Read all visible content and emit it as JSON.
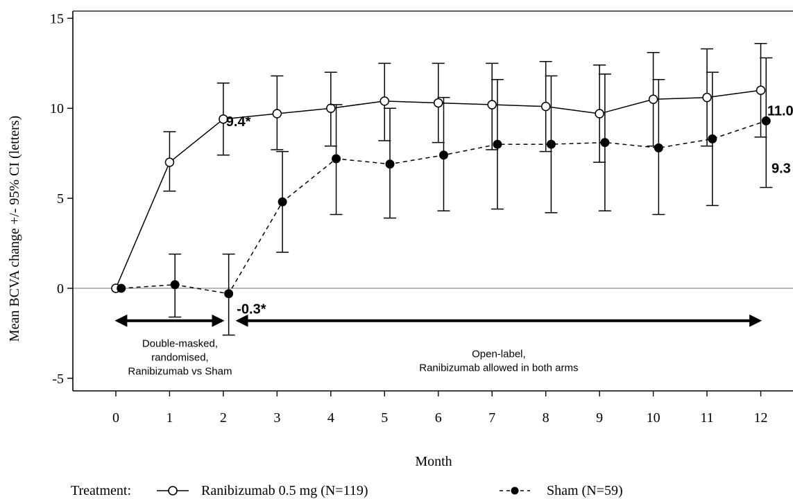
{
  "chart_data": {
    "type": "line",
    "xlabel": "Month",
    "ylabel": "Mean BCVA change +/- 95% CI  (letters)",
    "xlim": [
      -0.8,
      12.6
    ],
    "ylim": [
      -5.7,
      15.4
    ],
    "x_ticks": [
      0,
      1,
      2,
      3,
      4,
      5,
      6,
      7,
      8,
      9,
      10,
      11,
      12
    ],
    "y_ticks": [
      -5,
      0,
      5,
      10,
      15
    ],
    "reference_line_y": 0,
    "series": [
      {
        "name": "Ranibizumab 0.5 mg (N=119)",
        "line_style": "solid",
        "marker": "open-circle",
        "color": "#000000",
        "x_offset": 0,
        "x": [
          0,
          1,
          2,
          3,
          4,
          5,
          6,
          7,
          8,
          9,
          10,
          11,
          12
        ],
        "y": [
          0,
          7.0,
          9.4,
          9.7,
          10.0,
          10.4,
          10.3,
          10.2,
          10.1,
          9.7,
          10.5,
          10.6,
          11.0
        ],
        "ci_low": [
          null,
          5.4,
          7.4,
          7.7,
          7.9,
          8.2,
          8.1,
          7.7,
          7.6,
          7.0,
          7.9,
          7.9,
          8.4
        ],
        "ci_high": [
          null,
          8.7,
          11.4,
          11.8,
          12.0,
          12.5,
          12.5,
          12.5,
          12.6,
          12.4,
          13.1,
          13.3,
          13.6
        ]
      },
      {
        "name": "Sham (N=59)",
        "line_style": "dashed",
        "marker": "filled-circle",
        "color": "#000000",
        "x_offset": 0.1,
        "x": [
          0,
          1,
          2,
          3,
          4,
          5,
          6,
          7,
          8,
          9,
          10,
          11,
          12
        ],
        "y": [
          0,
          0.2,
          -0.3,
          4.8,
          7.2,
          6.9,
          7.4,
          8.0,
          8.0,
          8.1,
          7.8,
          8.3,
          9.3
        ],
        "ci_low": [
          null,
          -1.6,
          -2.6,
          2.0,
          4.1,
          3.9,
          4.3,
          4.4,
          4.2,
          4.3,
          4.1,
          4.6,
          5.6
        ],
        "ci_high": [
          null,
          1.9,
          1.9,
          7.6,
          10.2,
          10.0,
          10.6,
          11.6,
          11.8,
          11.9,
          11.6,
          12.0,
          12.8
        ]
      }
    ],
    "annotations": [
      {
        "text": "9.4*",
        "x": 2.05,
        "y": 9.0
      },
      {
        "text": "-0.3*",
        "x": 2.25,
        "y": -1.4
      },
      {
        "text": "11.0",
        "x": 12.12,
        "y": 9.6
      },
      {
        "text": "9.3",
        "x": 12.2,
        "y": 6.4
      }
    ],
    "period_arrows": [
      {
        "from": 0,
        "to": 2,
        "y": -1.8,
        "label_lines": [
          "Double-masked,",
          "randomised,",
          "Ranibizumab vs Sham"
        ]
      },
      {
        "from": 2.25,
        "to": 12,
        "y": -1.8,
        "label_lines": [
          "Open-label,",
          "Ranibizumab allowed in both arms"
        ]
      }
    ],
    "legend": {
      "title": "Treatment:",
      "position": "bottom"
    }
  }
}
